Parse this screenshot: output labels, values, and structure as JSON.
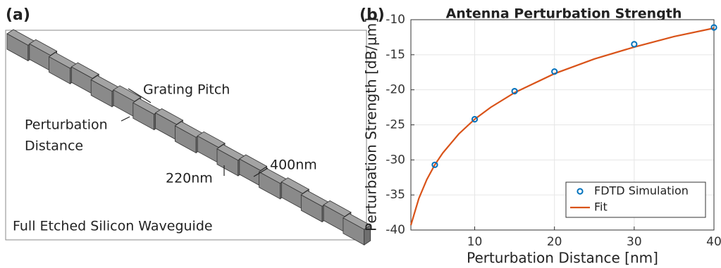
{
  "panel_a": {
    "label": "(a)",
    "texts": {
      "pitch": "Grating Pitch",
      "pert1": "Perturbation",
      "pert2": "Distance",
      "height": "220nm",
      "width": "400nm",
      "caption": "Full Etched Silicon Waveguide"
    }
  },
  "chart_data": {
    "type": "line",
    "label": "(b)",
    "title": "Antenna Perturbation Strength",
    "xlabel": "Perturbation Distance [nm]",
    "ylabel": "Perturbation Strength [dB/μm]",
    "xlim": [
      2,
      40
    ],
    "xticks": [
      10,
      20,
      30,
      40
    ],
    "ylim": [
      -40,
      -10
    ],
    "yticks": [
      -40,
      -35,
      -30,
      -25,
      -20,
      -15,
      -10
    ],
    "grid": true,
    "legend": "lower right",
    "series": [
      {
        "name": "FDTD Simulation",
        "style": "marker",
        "color": "#0072bd",
        "x": [
          5,
          10,
          15,
          20,
          30,
          40
        ],
        "values": [
          -30.7,
          -24.2,
          -20.2,
          -17.4,
          -13.5,
          -11.1
        ]
      },
      {
        "name": "Fit",
        "style": "line",
        "color": "#d95319",
        "x": [
          2,
          3,
          4,
          5,
          6,
          8,
          10,
          12,
          15,
          20,
          25,
          30,
          35,
          40
        ],
        "values": [
          -39.3,
          -35.5,
          -32.8,
          -30.7,
          -29.0,
          -26.3,
          -24.2,
          -22.5,
          -20.4,
          -17.7,
          -15.6,
          -13.9,
          -12.4,
          -11.2
        ]
      }
    ]
  }
}
